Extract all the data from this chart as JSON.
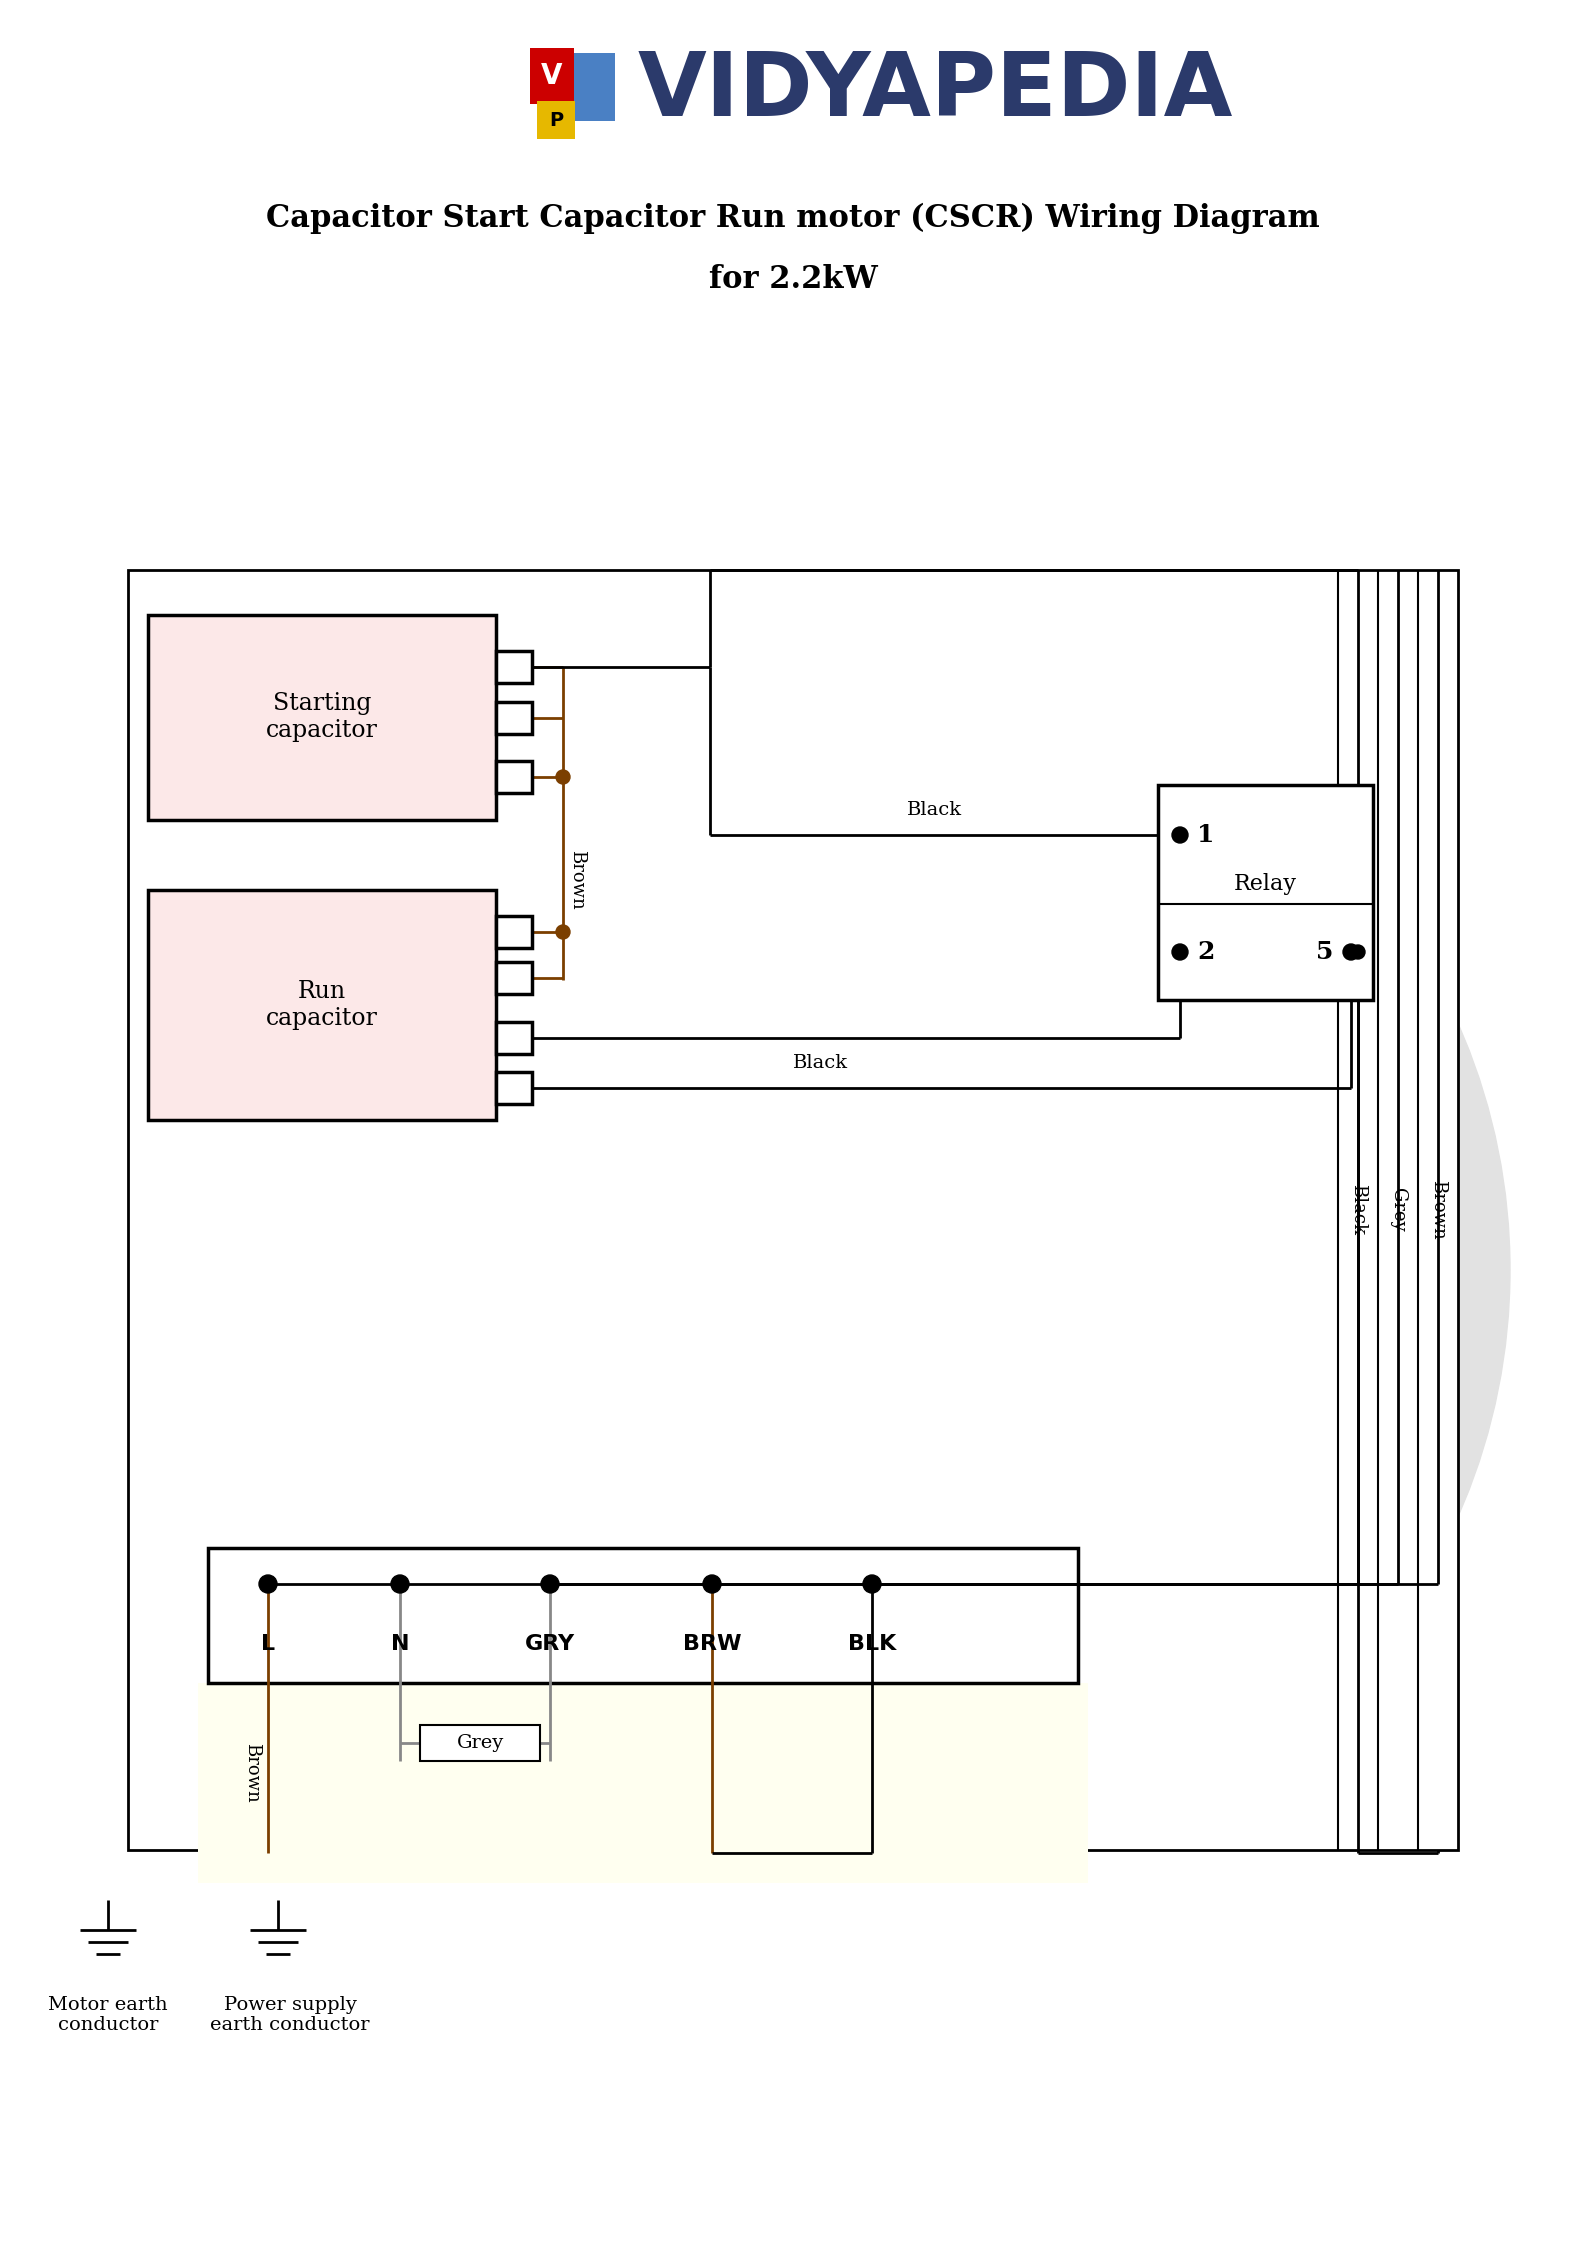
{
  "title_line1": "Capacitor Start Capacitor Run motor (CSCR) Wiring Diagram",
  "title_line2": "for 2.2kW",
  "title_fontsize": 22,
  "bg_color": "#ffffff",
  "cap_fill": "#fce8e8",
  "logo_text": "VIDYAPEDIA",
  "logo_color": "#2b3a6b",
  "starting_cap_label": "Starting\ncapacitor",
  "run_cap_label": "Run\ncapacitor",
  "relay_label": "Relay",
  "terminal_labels": [
    "L",
    "N",
    "GRY",
    "BRW",
    "BLK"
  ],
  "brown": "#7B3F00",
  "black": "#000000",
  "grey": "#888888",
  "circle_bg": "#e2e2e2",
  "wire_lw": 2.0
}
